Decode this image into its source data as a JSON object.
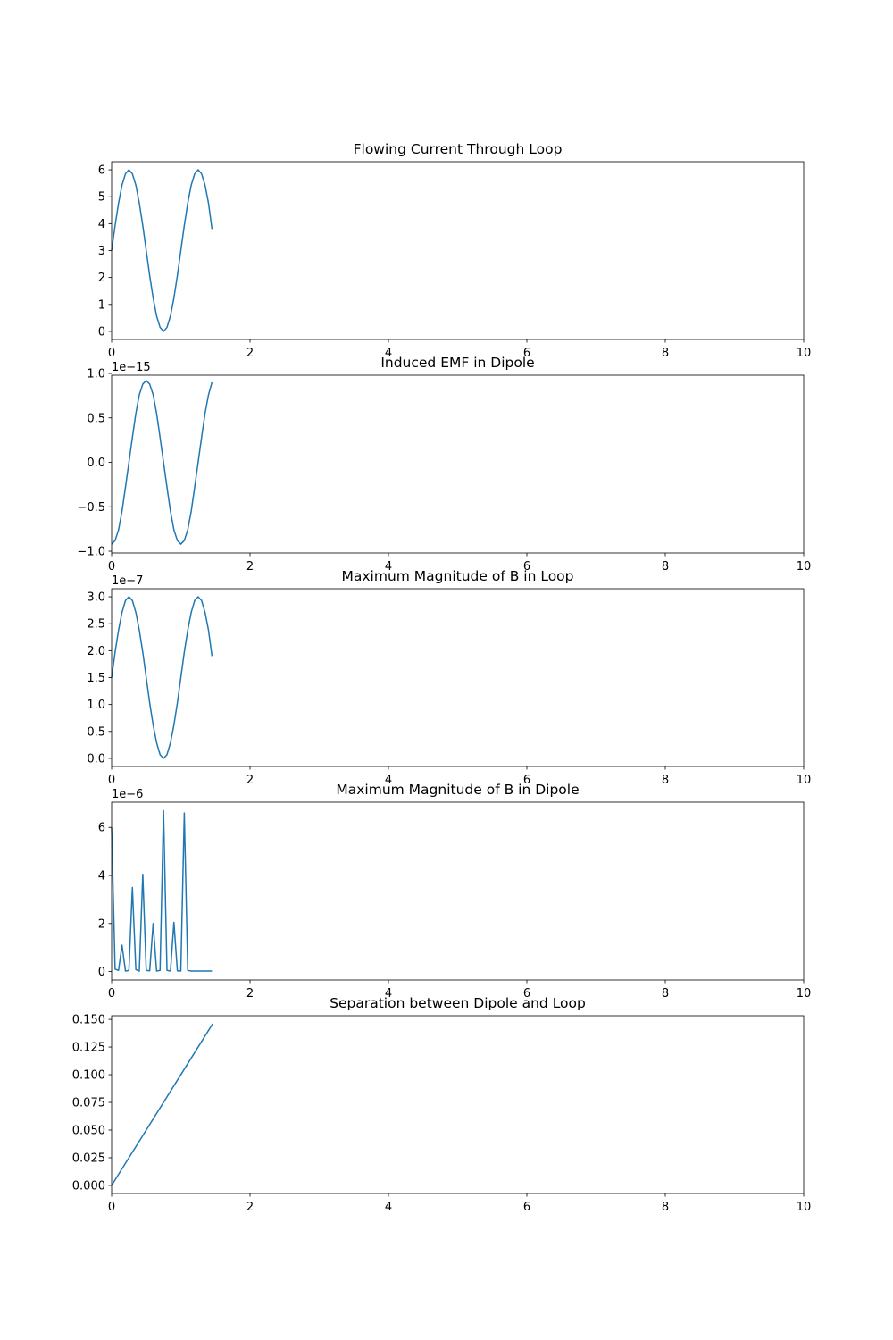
{
  "chart_data": [
    {
      "type": "line",
      "title": "Flowing Current Through Loop",
      "xlim": [
        0,
        10
      ],
      "ylim": [
        -0.3,
        6.3
      ],
      "xticks": [
        0,
        2,
        4,
        6,
        8,
        10
      ],
      "yticks": [
        0,
        1,
        2,
        3,
        4,
        5,
        6
      ],
      "ytick_labels": [
        "0",
        "1",
        "2",
        "3",
        "4",
        "5",
        "6"
      ],
      "offset_label": "",
      "color": "#1f77b4",
      "x": [
        0.0,
        0.05,
        0.1,
        0.15,
        0.2,
        0.25,
        0.3,
        0.35,
        0.4,
        0.45,
        0.5,
        0.55,
        0.6,
        0.65,
        0.7,
        0.75,
        0.8,
        0.85,
        0.9,
        0.95,
        1.0,
        1.05,
        1.1,
        1.15,
        1.2,
        1.25,
        1.3,
        1.35,
        1.4,
        1.45
      ],
      "y": [
        3.0,
        3.93,
        4.76,
        5.43,
        5.85,
        6.0,
        5.85,
        5.43,
        4.76,
        3.93,
        3.0,
        2.07,
        1.24,
        0.57,
        0.15,
        0.0,
        0.15,
        0.57,
        1.24,
        2.07,
        3.0,
        3.93,
        4.76,
        5.43,
        5.85,
        6.0,
        5.85,
        5.43,
        4.76,
        3.8
      ]
    },
    {
      "type": "line",
      "title": "Induced EMF in Dipole",
      "xlim": [
        0,
        10
      ],
      "ylim": [
        -1.02,
        0.98
      ],
      "xticks": [
        0,
        2,
        4,
        6,
        8,
        10
      ],
      "yticks": [
        -1.0,
        -0.5,
        0.0,
        0.5,
        1.0
      ],
      "ytick_labels": [
        "−1.0",
        "−0.5",
        "0.0",
        "0.5",
        "1.0"
      ],
      "offset_label": "1e−15",
      "color": "#1f77b4",
      "x": [
        0.0,
        0.05,
        0.1,
        0.15,
        0.2,
        0.25,
        0.3,
        0.35,
        0.4,
        0.45,
        0.5,
        0.55,
        0.6,
        0.65,
        0.7,
        0.75,
        0.8,
        0.85,
        0.9,
        0.95,
        1.0,
        1.05,
        1.1,
        1.15,
        1.2,
        1.25,
        1.3,
        1.35,
        1.4,
        1.45
      ],
      "y": [
        -0.92,
        -0.88,
        -0.76,
        -0.55,
        -0.28,
        0.0,
        0.28,
        0.55,
        0.76,
        0.88,
        0.92,
        0.88,
        0.76,
        0.55,
        0.28,
        0.0,
        -0.28,
        -0.55,
        -0.76,
        -0.88,
        -0.92,
        -0.88,
        -0.76,
        -0.55,
        -0.28,
        0.0,
        0.28,
        0.55,
        0.76,
        0.9
      ]
    },
    {
      "type": "line",
      "title": "Maximum Magnitude of B in Loop",
      "xlim": [
        0,
        10
      ],
      "ylim": [
        -0.15,
        3.15
      ],
      "xticks": [
        0,
        2,
        4,
        6,
        8,
        10
      ],
      "yticks": [
        0,
        0.5,
        1.0,
        1.5,
        2.0,
        2.5,
        3.0
      ],
      "ytick_labels": [
        "0.0",
        "0.5",
        "1.0",
        "1.5",
        "2.0",
        "2.5",
        "3.0"
      ],
      "offset_label": "1e−7",
      "color": "#1f77b4",
      "x": [
        0.0,
        0.05,
        0.1,
        0.15,
        0.2,
        0.25,
        0.3,
        0.35,
        0.4,
        0.45,
        0.5,
        0.55,
        0.6,
        0.65,
        0.7,
        0.75,
        0.8,
        0.85,
        0.9,
        0.95,
        1.0,
        1.05,
        1.1,
        1.15,
        1.2,
        1.25,
        1.3,
        1.35,
        1.4,
        1.45
      ],
      "y": [
        1.5,
        1.97,
        2.38,
        2.71,
        2.93,
        3.0,
        2.93,
        2.71,
        2.38,
        1.97,
        1.5,
        1.03,
        0.62,
        0.29,
        0.07,
        0.0,
        0.07,
        0.29,
        0.62,
        1.03,
        1.5,
        1.97,
        2.38,
        2.71,
        2.93,
        3.0,
        2.93,
        2.71,
        2.38,
        1.9
      ]
    },
    {
      "type": "line",
      "title": "Maximum Magnitude of B in Dipole",
      "xlim": [
        0,
        10
      ],
      "ylim": [
        -0.35,
        7.05
      ],
      "xticks": [
        0,
        2,
        4,
        6,
        8,
        10
      ],
      "yticks": [
        0,
        2,
        4,
        6
      ],
      "ytick_labels": [
        "0",
        "2",
        "4",
        "6"
      ],
      "offset_label": "1e−6",
      "color": "#1f77b4",
      "x": [
        0.0,
        0.05,
        0.1,
        0.15,
        0.2,
        0.25,
        0.3,
        0.35,
        0.4,
        0.45,
        0.5,
        0.55,
        0.6,
        0.65,
        0.7,
        0.75,
        0.8,
        0.85,
        0.9,
        0.95,
        1.0,
        1.05,
        1.1,
        1.15,
        1.2,
        1.25,
        1.3,
        1.35,
        1.4,
        1.45
      ],
      "y": [
        6.0,
        0.1,
        0.05,
        1.1,
        0.02,
        0.05,
        3.5,
        0.08,
        0.02,
        4.05,
        0.05,
        0.03,
        2.0,
        0.02,
        0.05,
        6.7,
        0.05,
        0.02,
        2.05,
        0.03,
        0.02,
        6.6,
        0.05,
        0.02,
        0.02,
        0.02,
        0.02,
        0.02,
        0.02,
        0.02
      ]
    },
    {
      "type": "line",
      "title": "Separation between Dipole and Loop",
      "xlim": [
        0,
        10
      ],
      "ylim": [
        -0.0073,
        0.1533
      ],
      "xticks": [
        0,
        2,
        4,
        6,
        8,
        10
      ],
      "yticks": [
        0,
        0.025,
        0.05,
        0.075,
        0.1,
        0.125,
        0.15
      ],
      "ytick_labels": [
        "0.000",
        "0.025",
        "0.050",
        "0.075",
        "0.100",
        "0.125",
        "0.150"
      ],
      "offset_label": "",
      "color": "#1f77b4",
      "x": [
        0.0,
        1.46
      ],
      "y": [
        0.0,
        0.146
      ]
    }
  ]
}
